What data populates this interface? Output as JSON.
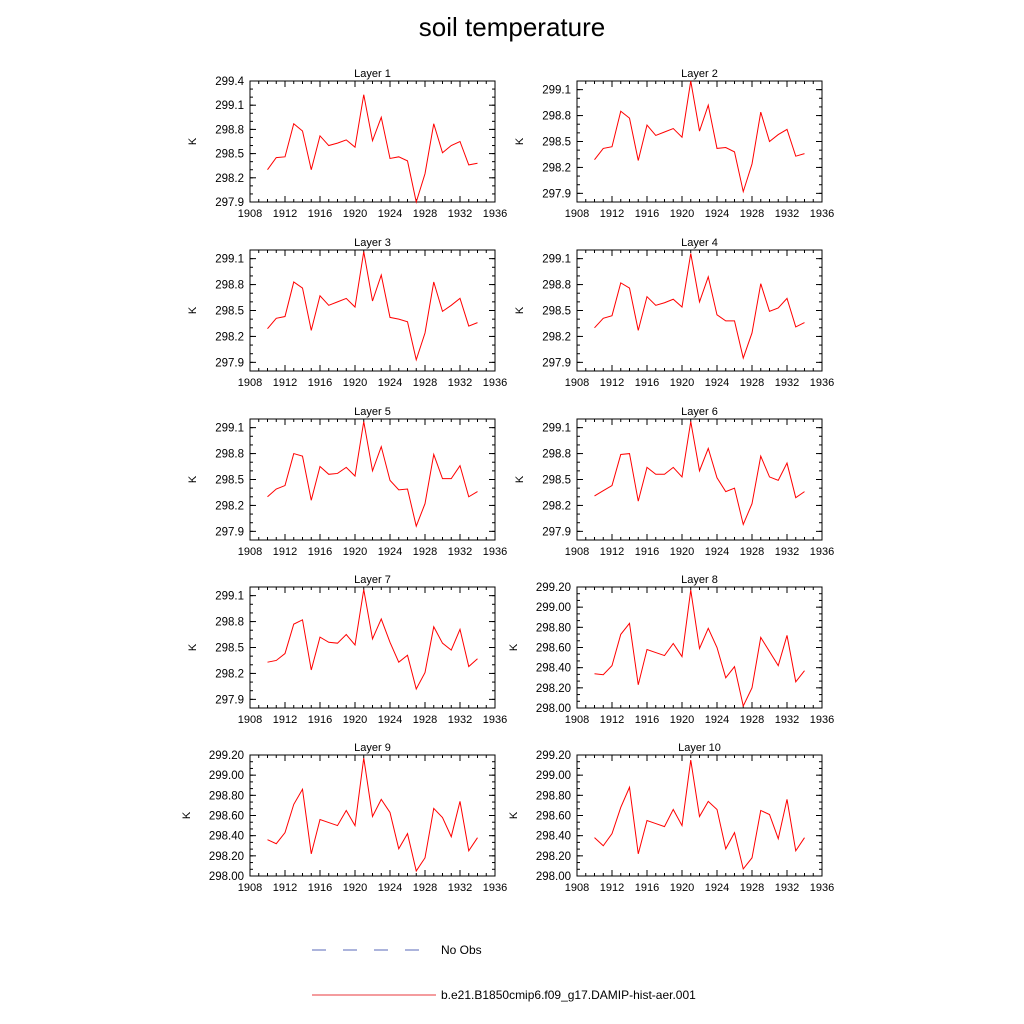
{
  "figure": {
    "title": "soil temperature",
    "legend": [
      {
        "label": "No Obs",
        "color": "#5a6ab8",
        "style": "dashed"
      },
      {
        "label": "b.e21.B1850cmip6.f09_g17.DAMIP-hist-aer.001",
        "color": "#e8383e",
        "style": "solid"
      }
    ]
  },
  "chart_data": [
    {
      "type": "line",
      "title": "Layer 1",
      "ylabel": "K",
      "xlim": [
        1908,
        1936
      ],
      "ylim": [
        297.9,
        299.4
      ],
      "xticks": [
        "1908",
        "1912",
        "1916",
        "1920",
        "1924",
        "1928",
        "1932",
        "1936"
      ],
      "yticks": [
        "297.9",
        "298.2",
        "298.5",
        "298.8",
        "299.1",
        "299.4"
      ],
      "ytick_values": [
        297.9,
        298.2,
        298.5,
        298.8,
        299.1,
        299.4
      ],
      "line_color": "#ff0000",
      "x": [
        1910,
        1911,
        1912,
        1913,
        1914,
        1915,
        1916,
        1917,
        1918,
        1919,
        1920,
        1921,
        1922,
        1923,
        1924,
        1925,
        1926,
        1927,
        1928,
        1929,
        1930,
        1931,
        1932,
        1933,
        1934
      ],
      "y": [
        298.3,
        298.45,
        298.46,
        298.87,
        298.78,
        298.3,
        298.72,
        298.6,
        298.63,
        298.67,
        298.58,
        299.23,
        298.66,
        298.95,
        298.44,
        298.46,
        298.41,
        297.9,
        298.25,
        298.87,
        298.51,
        298.6,
        298.65,
        298.36,
        298.38
      ]
    },
    {
      "type": "line",
      "title": "Layer 2",
      "ylabel": "K",
      "xlim": [
        1908,
        1936
      ],
      "ylim": [
        297.8,
        299.2
      ],
      "xticks": [
        "1908",
        "1912",
        "1916",
        "1920",
        "1924",
        "1928",
        "1932",
        "1936"
      ],
      "yticks": [
        "297.9",
        "298.2",
        "298.5",
        "298.8",
        "299.1"
      ],
      "ytick_values": [
        297.9,
        298.2,
        298.5,
        298.8,
        299.1
      ],
      "line_color": "#ff0000",
      "x": [
        1910,
        1911,
        1912,
        1913,
        1914,
        1915,
        1916,
        1917,
        1918,
        1919,
        1920,
        1921,
        1922,
        1923,
        1924,
        1925,
        1926,
        1927,
        1928,
        1929,
        1930,
        1931,
        1932,
        1933,
        1934
      ],
      "y": [
        298.29,
        298.42,
        298.44,
        298.85,
        298.77,
        298.28,
        298.69,
        298.57,
        298.61,
        298.65,
        298.55,
        299.2,
        298.62,
        298.92,
        298.42,
        298.43,
        298.38,
        297.92,
        298.24,
        298.84,
        298.5,
        298.58,
        298.64,
        298.33,
        298.36
      ]
    },
    {
      "type": "line",
      "title": "Layer 3",
      "ylabel": "K",
      "xlim": [
        1908,
        1936
      ],
      "ylim": [
        297.8,
        299.2
      ],
      "xticks": [
        "1908",
        "1912",
        "1916",
        "1920",
        "1924",
        "1928",
        "1932",
        "1936"
      ],
      "yticks": [
        "297.9",
        "298.2",
        "298.5",
        "298.8",
        "299.1"
      ],
      "ytick_values": [
        297.9,
        298.2,
        298.5,
        298.8,
        299.1
      ],
      "line_color": "#ff0000",
      "x": [
        1910,
        1911,
        1912,
        1913,
        1914,
        1915,
        1916,
        1917,
        1918,
        1919,
        1920,
        1921,
        1922,
        1923,
        1924,
        1925,
        1926,
        1927,
        1928,
        1929,
        1930,
        1931,
        1932,
        1933,
        1934
      ],
      "y": [
        298.29,
        298.41,
        298.43,
        298.83,
        298.76,
        298.27,
        298.67,
        298.56,
        298.6,
        298.64,
        298.54,
        299.18,
        298.61,
        298.91,
        298.42,
        298.4,
        298.37,
        297.93,
        298.24,
        298.83,
        298.49,
        298.56,
        298.64,
        298.32,
        298.36
      ]
    },
    {
      "type": "line",
      "title": "Layer 4",
      "ylabel": "K",
      "xlim": [
        1908,
        1936
      ],
      "ylim": [
        297.8,
        299.2
      ],
      "xticks": [
        "1908",
        "1912",
        "1916",
        "1920",
        "1924",
        "1928",
        "1932",
        "1936"
      ],
      "yticks": [
        "297.9",
        "298.2",
        "298.5",
        "298.8",
        "299.1"
      ],
      "ytick_values": [
        297.9,
        298.2,
        298.5,
        298.8,
        299.1
      ],
      "line_color": "#ff0000",
      "x": [
        1910,
        1911,
        1912,
        1913,
        1914,
        1915,
        1916,
        1917,
        1918,
        1919,
        1920,
        1921,
        1922,
        1923,
        1924,
        1925,
        1926,
        1927,
        1928,
        1929,
        1930,
        1931,
        1932,
        1933,
        1934
      ],
      "y": [
        298.3,
        298.41,
        298.44,
        298.82,
        298.76,
        298.27,
        298.66,
        298.56,
        298.59,
        298.63,
        298.54,
        299.16,
        298.6,
        298.89,
        298.45,
        298.38,
        298.38,
        297.95,
        298.24,
        298.81,
        298.49,
        298.53,
        298.64,
        298.31,
        298.36
      ]
    },
    {
      "type": "line",
      "title": "Layer 5",
      "ylabel": "K",
      "xlim": [
        1908,
        1936
      ],
      "ylim": [
        297.8,
        299.2
      ],
      "xticks": [
        "1908",
        "1912",
        "1916",
        "1920",
        "1924",
        "1928",
        "1932",
        "1936"
      ],
      "yticks": [
        "297.9",
        "298.2",
        "298.5",
        "298.8",
        "299.1"
      ],
      "ytick_values": [
        297.9,
        298.2,
        298.5,
        298.8,
        299.1
      ],
      "line_color": "#ff0000",
      "x": [
        1910,
        1911,
        1912,
        1913,
        1914,
        1915,
        1916,
        1917,
        1918,
        1919,
        1920,
        1921,
        1922,
        1923,
        1924,
        1925,
        1926,
        1927,
        1928,
        1929,
        1930,
        1931,
        1932,
        1933,
        1934
      ],
      "y": [
        298.3,
        298.39,
        298.43,
        298.8,
        298.77,
        298.26,
        298.65,
        298.56,
        298.57,
        298.64,
        298.54,
        299.17,
        298.6,
        298.88,
        298.49,
        298.38,
        298.39,
        297.96,
        298.22,
        298.79,
        298.51,
        298.51,
        298.66,
        298.3,
        298.36
      ]
    },
    {
      "type": "line",
      "title": "Layer 6",
      "ylabel": "K",
      "xlim": [
        1908,
        1936
      ],
      "ylim": [
        297.8,
        299.2
      ],
      "xticks": [
        "1908",
        "1912",
        "1916",
        "1920",
        "1924",
        "1928",
        "1932",
        "1936"
      ],
      "yticks": [
        "297.9",
        "298.2",
        "298.5",
        "298.8",
        "299.1"
      ],
      "ytick_values": [
        297.9,
        298.2,
        298.5,
        298.8,
        299.1
      ],
      "line_color": "#ff0000",
      "x": [
        1910,
        1911,
        1912,
        1913,
        1914,
        1915,
        1916,
        1917,
        1918,
        1919,
        1920,
        1921,
        1922,
        1923,
        1924,
        1925,
        1926,
        1927,
        1928,
        1929,
        1930,
        1931,
        1932,
        1933,
        1934
      ],
      "y": [
        298.31,
        298.37,
        298.43,
        298.79,
        298.8,
        298.25,
        298.64,
        298.56,
        298.56,
        298.64,
        298.53,
        299.17,
        298.6,
        298.86,
        298.52,
        298.36,
        298.4,
        297.98,
        298.22,
        298.77,
        298.53,
        298.49,
        298.69,
        298.29,
        298.36
      ]
    },
    {
      "type": "line",
      "title": "Layer 7",
      "ylabel": "K",
      "xlim": [
        1908,
        1936
      ],
      "ylim": [
        297.8,
        299.2
      ],
      "xticks": [
        "1908",
        "1912",
        "1916",
        "1920",
        "1924",
        "1928",
        "1932",
        "1936"
      ],
      "yticks": [
        "297.9",
        "298.2",
        "298.5",
        "298.8",
        "299.1"
      ],
      "ytick_values": [
        297.9,
        298.2,
        298.5,
        298.8,
        299.1
      ],
      "line_color": "#ff0000",
      "x": [
        1910,
        1911,
        1912,
        1913,
        1914,
        1915,
        1916,
        1917,
        1918,
        1919,
        1920,
        1921,
        1922,
        1923,
        1924,
        1925,
        1926,
        1927,
        1928,
        1929,
        1930,
        1931,
        1932,
        1933,
        1934
      ],
      "y": [
        298.33,
        298.35,
        298.43,
        298.77,
        298.82,
        298.24,
        298.62,
        298.56,
        298.55,
        298.65,
        298.53,
        299.17,
        298.6,
        298.83,
        298.56,
        298.33,
        298.41,
        298.02,
        298.21,
        298.74,
        298.55,
        298.47,
        298.71,
        298.28,
        298.37
      ]
    },
    {
      "type": "line",
      "title": "Layer 8",
      "ylabel": "K",
      "xlim": [
        1908,
        1936
      ],
      "ylim": [
        298.0,
        299.2
      ],
      "xticks": [
        "1908",
        "1912",
        "1916",
        "1920",
        "1924",
        "1928",
        "1932",
        "1936"
      ],
      "yticks": [
        "298.00",
        "298.20",
        "298.40",
        "298.60",
        "298.80",
        "299.00",
        "299.20"
      ],
      "ytick_values": [
        298.0,
        298.2,
        298.4,
        298.6,
        298.8,
        299.0,
        299.2
      ],
      "line_color": "#ff0000",
      "x": [
        1910,
        1911,
        1912,
        1913,
        1914,
        1915,
        1916,
        1917,
        1918,
        1919,
        1920,
        1921,
        1922,
        1923,
        1924,
        1925,
        1926,
        1927,
        1928,
        1929,
        1930,
        1931,
        1932,
        1933,
        1934
      ],
      "y": [
        298.34,
        298.33,
        298.42,
        298.73,
        298.84,
        298.23,
        298.58,
        298.55,
        298.52,
        298.64,
        298.51,
        299.17,
        298.59,
        298.79,
        298.6,
        298.3,
        298.41,
        298.02,
        298.2,
        298.7,
        298.56,
        298.42,
        298.72,
        298.26,
        298.37
      ]
    },
    {
      "type": "line",
      "title": "Layer 9",
      "ylabel": "K",
      "xlim": [
        1908,
        1936
      ],
      "ylim": [
        298.0,
        299.2
      ],
      "xticks": [
        "1908",
        "1912",
        "1916",
        "1920",
        "1924",
        "1928",
        "1932",
        "1936"
      ],
      "yticks": [
        "298.00",
        "298.20",
        "298.40",
        "298.60",
        "298.80",
        "299.00",
        "299.20"
      ],
      "ytick_values": [
        298.0,
        298.2,
        298.4,
        298.6,
        298.8,
        299.0,
        299.2
      ],
      "line_color": "#ff0000",
      "x": [
        1910,
        1911,
        1912,
        1913,
        1914,
        1915,
        1916,
        1917,
        1918,
        1919,
        1920,
        1921,
        1922,
        1923,
        1924,
        1925,
        1926,
        1927,
        1928,
        1929,
        1930,
        1931,
        1932,
        1933,
        1934
      ],
      "y": [
        298.36,
        298.32,
        298.43,
        298.71,
        298.86,
        298.22,
        298.56,
        298.53,
        298.5,
        298.65,
        298.5,
        299.17,
        298.59,
        298.76,
        298.63,
        298.27,
        298.42,
        298.05,
        298.18,
        298.67,
        298.58,
        298.39,
        298.74,
        298.25,
        298.38
      ]
    },
    {
      "type": "line",
      "title": "Layer 10",
      "ylabel": "K",
      "xlim": [
        1908,
        1936
      ],
      "ylim": [
        298.0,
        299.2
      ],
      "xticks": [
        "1908",
        "1912",
        "1916",
        "1920",
        "1924",
        "1928",
        "1932",
        "1936"
      ],
      "yticks": [
        "298.00",
        "298.20",
        "298.40",
        "298.60",
        "298.80",
        "299.00",
        "299.20"
      ],
      "ytick_values": [
        298.0,
        298.2,
        298.4,
        298.6,
        298.8,
        299.0,
        299.2
      ],
      "line_color": "#ff0000",
      "x": [
        1910,
        1911,
        1912,
        1913,
        1914,
        1915,
        1916,
        1917,
        1918,
        1919,
        1920,
        1921,
        1922,
        1923,
        1924,
        1925,
        1926,
        1927,
        1928,
        1929,
        1930,
        1931,
        1932,
        1933,
        1934
      ],
      "y": [
        298.38,
        298.3,
        298.42,
        298.68,
        298.88,
        298.22,
        298.55,
        298.52,
        298.49,
        298.66,
        298.5,
        299.15,
        298.59,
        298.74,
        298.66,
        298.27,
        298.43,
        298.07,
        298.18,
        298.65,
        298.61,
        298.37,
        298.76,
        298.25,
        298.38
      ]
    }
  ]
}
